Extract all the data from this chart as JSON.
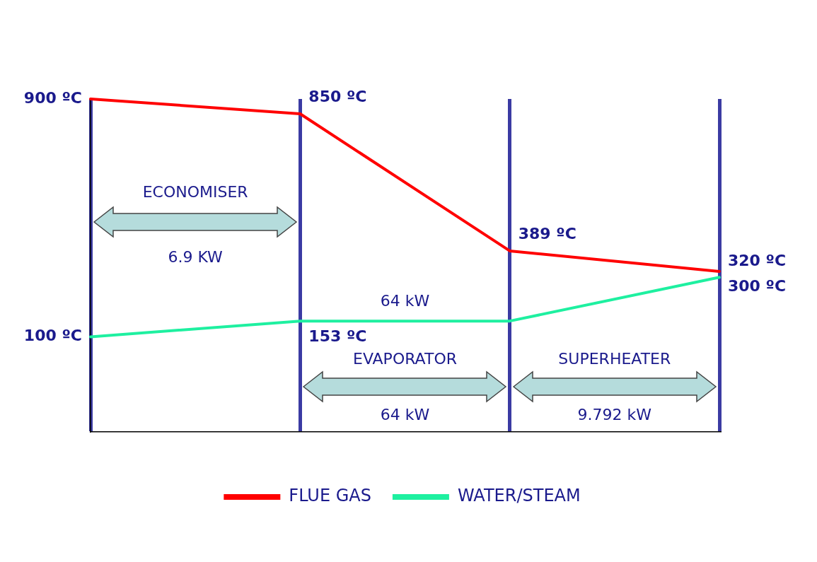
{
  "chart_data": {
    "type": "line",
    "categories": [
      null,
      null,
      null,
      null
    ],
    "series": [
      {
        "name": "FLUE GAS",
        "color": "#ff0000",
        "values": [
          900,
          850,
          389,
          320
        ],
        "value_labels": [
          "900 ºC",
          "850 ºC",
          "389 ºC",
          "320 ºC"
        ]
      },
      {
        "name": "WATER/STEAM",
        "color": "#1ef0a0",
        "values": [
          100,
          153,
          153,
          300
        ],
        "value_labels": [
          "100 ºC",
          "153 ºC",
          null,
          "300 ºC"
        ]
      }
    ],
    "annotations": [
      "ECONOMISER",
      "6.9 KW",
      "64 kW",
      "EVAPORATOR",
      "64 kW",
      "SUPERHEATER",
      "9.792 kW"
    ],
    "grid": "x",
    "legend": "bottom",
    "tick_labels": false,
    "marker": "none",
    "line_style": "solid"
  }
}
